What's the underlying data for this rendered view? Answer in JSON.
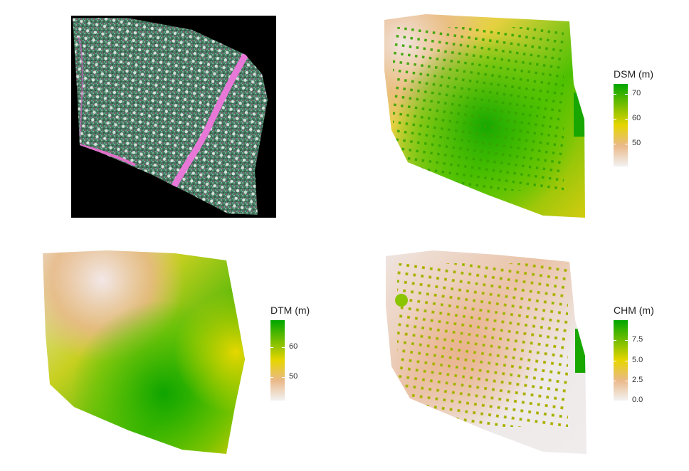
{
  "panels": [
    {
      "id": "ortho",
      "kind": "rgb-orthomosaic",
      "legend": null
    },
    {
      "id": "dsm",
      "kind": "raster",
      "legend": {
        "title": "DSM (m)",
        "range": [
          41,
          74
        ],
        "ticks": [
          {
            "value": 50,
            "label": "50"
          },
          {
            "value": 60,
            "label": "60"
          },
          {
            "value": 70,
            "label": "70"
          }
        ]
      }
    },
    {
      "id": "dtm",
      "kind": "raster",
      "legend": {
        "title": "DTM (m)",
        "range": [
          42,
          69
        ],
        "ticks": [
          {
            "value": 50,
            "label": "50"
          },
          {
            "value": 60,
            "label": "60"
          }
        ]
      }
    },
    {
      "id": "chm",
      "kind": "raster",
      "legend": {
        "title": "CHM (m)",
        "range": [
          0,
          10
        ],
        "ticks": [
          {
            "value": 0,
            "label": "0.0"
          },
          {
            "value": 2.5,
            "label": "2.5"
          },
          {
            "value": 5,
            "label": "5.0"
          },
          {
            "value": 7.5,
            "label": "7.5"
          }
        ]
      }
    }
  ],
  "colors": {
    "ramp_low": "#f2f2f2",
    "ramp_lowmid": "#eab98a",
    "ramp_mid": "#e6d500",
    "ramp_high": "#00a600",
    "ortho_background": "#000000",
    "ortho_vegetation": "#5fa07a",
    "ortho_road": "#e878d8"
  }
}
